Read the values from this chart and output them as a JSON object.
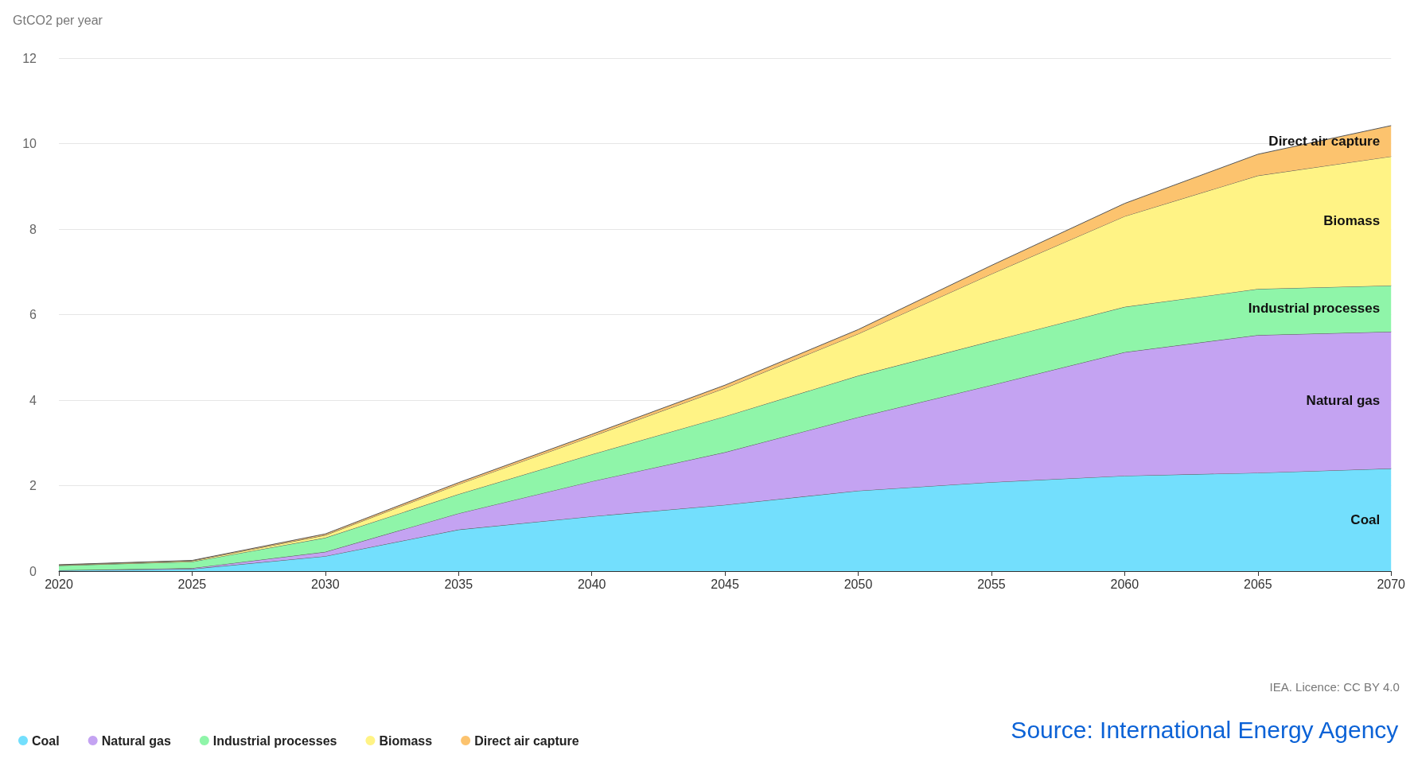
{
  "chart_data": {
    "type": "area",
    "stacked": true,
    "ylabel": "GtCO2 per year",
    "x": [
      2020,
      2025,
      2030,
      2035,
      2040,
      2045,
      2050,
      2055,
      2060,
      2065,
      2070
    ],
    "xlim": [
      2020,
      2070
    ],
    "xticks": [
      2020,
      2025,
      2030,
      2035,
      2040,
      2045,
      2050,
      2055,
      2060,
      2065,
      2070
    ],
    "ylim": [
      0,
      12
    ],
    "yticks": [
      0,
      2,
      4,
      6,
      8,
      10,
      12
    ],
    "grid": "y",
    "legend": "bottom left",
    "series": [
      {
        "name": "Coal",
        "color": "#73dffd",
        "values": [
          0.02,
          0.05,
          0.35,
          0.97,
          1.28,
          1.55,
          1.88,
          2.08,
          2.23,
          2.3,
          2.4
        ]
      },
      {
        "name": "Natural gas",
        "color": "#c4a3f2",
        "values": [
          0,
          0.02,
          0.1,
          0.38,
          0.82,
          1.23,
          1.72,
          2.27,
          2.89,
          3.22,
          3.2
        ]
      },
      {
        "name": "Industrial processes",
        "color": "#8ff5a9",
        "values": [
          0.11,
          0.15,
          0.33,
          0.45,
          0.63,
          0.84,
          0.97,
          1.03,
          1.06,
          1.08,
          1.08
        ]
      },
      {
        "name": "Biomass",
        "color": "#fff385",
        "values": [
          0.01,
          0.02,
          0.06,
          0.23,
          0.42,
          0.66,
          0.98,
          1.57,
          2.12,
          2.65,
          3.02
        ]
      },
      {
        "name": "Direct air capture",
        "color": "#fcc36e",
        "values": [
          0.01,
          0.01,
          0.03,
          0.04,
          0.05,
          0.07,
          0.1,
          0.2,
          0.3,
          0.5,
          0.72
        ]
      }
    ],
    "annotations": [
      "IEA. Licence: CC BY 4.0",
      "Source: International Energy Agency"
    ]
  }
}
